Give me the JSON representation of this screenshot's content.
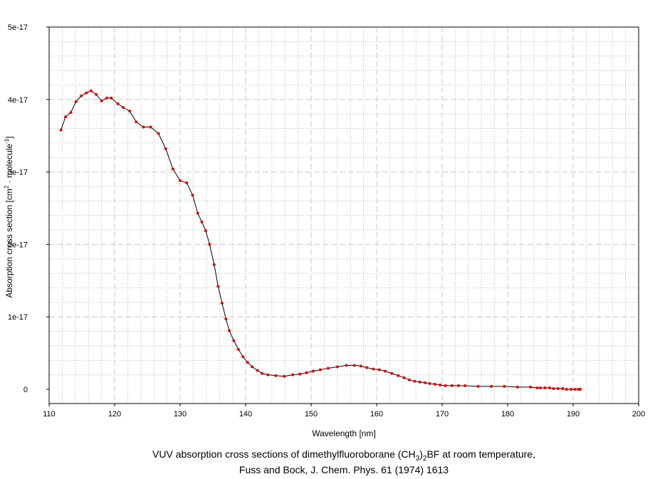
{
  "chart_data": {
    "type": "line",
    "title": "",
    "caption": {
      "line1_prefix": "VUV absorption cross sections of dimethylfluoroborane (CH",
      "line1_sub1": "3",
      "line1_mid": ")",
      "line1_sub2": "2",
      "line1_suffix": "BF at room temperature,",
      "line2": "Fuss and Bock, J. Chem. Phys. 61 (1974) 1613"
    },
    "xlabel": "Wavelength [nm]",
    "ylabel": {
      "prefix": "Absorption cross section [cm",
      "sup1": "2",
      "mid": " · molecule",
      "sup2": "-1",
      "suffix": "]"
    },
    "xlim": [
      110,
      200
    ],
    "ylim": [
      0,
      5e-17
    ],
    "x_ticks": [
      "110",
      "120",
      "130",
      "140",
      "150",
      "160",
      "170",
      "180",
      "190",
      "200"
    ],
    "y_ticks": [
      "0",
      "1e-17",
      "2e-17",
      "3e-17",
      "4e-17",
      "5e-17"
    ],
    "grid": true,
    "colors": {
      "line": "#000000",
      "marker": "#e00000",
      "major_grid": "#c8c8c8",
      "minor_grid": "#b8b8b8"
    },
    "series": [
      {
        "x": [
          111.8,
          112.5,
          113.3,
          114.1,
          114.9,
          115.7,
          116.4,
          117.2,
          118.0,
          118.8,
          119.5,
          120.5,
          121.3,
          122.3,
          123.3,
          124.4,
          125.5,
          126.7,
          127.8,
          128.9,
          130.0,
          131.0,
          131.9,
          132.7,
          133.3,
          133.9,
          134.5,
          135.2,
          135.8,
          136.4,
          137.0,
          137.5,
          138.2,
          138.9,
          139.6,
          140.3,
          141.0,
          141.8,
          142.5,
          143.4,
          144.6,
          145.9,
          147.2,
          148.3,
          149.3,
          150.3,
          151.4,
          152.6,
          154.0,
          155.4,
          156.6,
          157.6,
          158.5,
          159.5,
          160.4,
          161.3,
          162.3,
          163.3,
          164.2,
          165.0,
          165.8,
          166.6,
          167.4,
          168.1,
          168.9,
          169.7,
          170.5,
          171.5,
          172.5,
          173.5,
          175.5,
          177.5,
          179.5,
          181.5,
          183.5,
          184.5,
          185.0,
          185.7,
          186.4,
          187.0,
          187.7,
          188.4,
          189.0,
          189.7,
          190.3,
          190.8,
          191.1
        ],
        "y": [
          3.58e-17,
          3.76e-17,
          3.82e-17,
          3.97e-17,
          4.05e-17,
          4.09e-17,
          4.12e-17,
          4.07e-17,
          3.98e-17,
          4.02e-17,
          4.02e-17,
          3.94e-17,
          3.89e-17,
          3.84e-17,
          3.69e-17,
          3.62e-17,
          3.62e-17,
          3.53e-17,
          3.32e-17,
          3.04e-17,
          2.88e-17,
          2.85e-17,
          2.68e-17,
          2.43e-17,
          2.31e-17,
          2.19e-17,
          2e-17,
          1.72e-17,
          1.42e-17,
          1.19e-17,
          9.7e-18,
          8.1e-18,
          6.7e-18,
          5.5e-18,
          4.5e-18,
          3.7e-18,
          3.1e-18,
          2.6e-18,
          2.2e-18,
          2e-18,
          1.9e-18,
          1.8e-18,
          2e-18,
          2.1e-18,
          2.3e-18,
          2.5e-18,
          2.7e-18,
          2.9e-18,
          3.1e-18,
          3.3e-18,
          3.3e-18,
          3.2e-18,
          3e-18,
          2.8e-18,
          2.7e-18,
          2.5e-18,
          2.2e-18,
          1.9e-18,
          1.6e-18,
          1.3e-18,
          1.1e-18,
          1e-18,
          9e-19,
          8e-19,
          7e-19,
          6e-19,
          5e-19,
          5e-19,
          5e-19,
          5e-19,
          4e-19,
          4e-19,
          4e-19,
          3e-19,
          3e-19,
          2e-19,
          2e-19,
          2e-19,
          2e-19,
          1e-19,
          1e-19,
          1e-19,
          0.0,
          0.0,
          0.0,
          0.0,
          0.0
        ]
      }
    ]
  }
}
